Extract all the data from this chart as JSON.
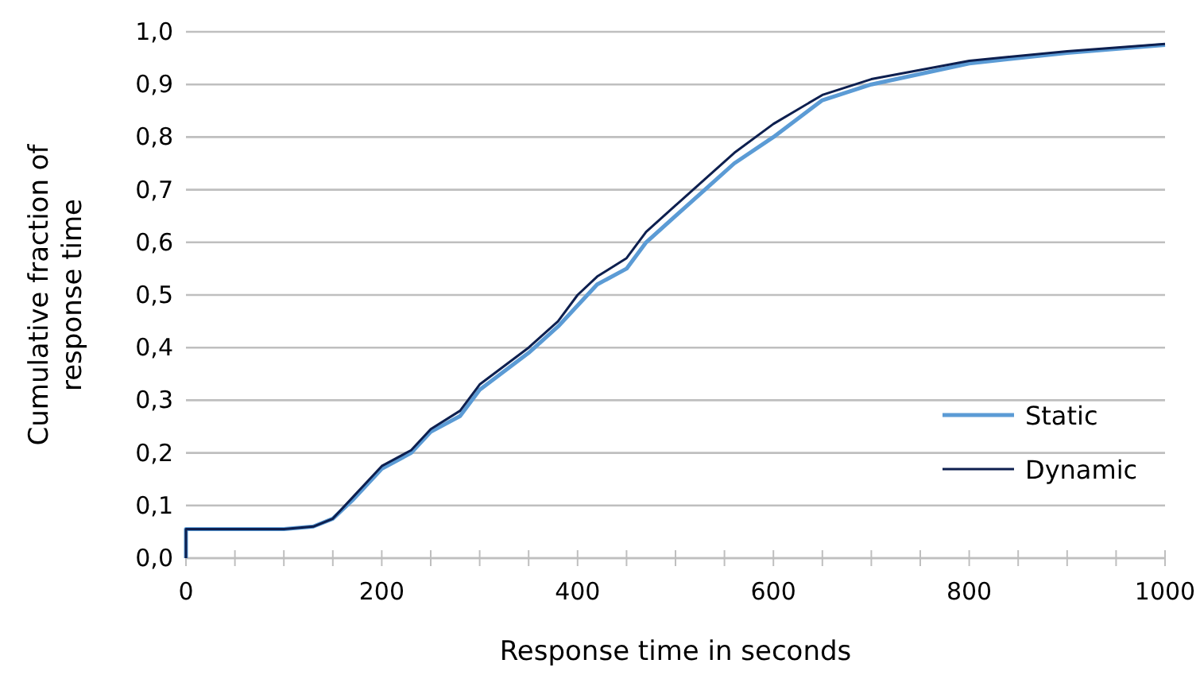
{
  "chart_data": {
    "type": "line",
    "xlabel": "Response time in seconds",
    "ylabel": "Cumulative fraction of response time",
    "xlim": [
      0,
      1000
    ],
    "ylim": [
      0,
      1
    ],
    "xticks": [
      0,
      {
        "value": 50,
        "label": null
      },
      {
        "value": 100,
        "label": null
      },
      {
        "value": 150,
        "label": null
      },
      200,
      {
        "value": 250,
        "label": null
      },
      {
        "value": 300,
        "label": null
      },
      {
        "value": 350,
        "label": null
      },
      400,
      {
        "value": 450,
        "label": null
      },
      {
        "value": 500,
        "label": null
      },
      {
        "value": 550,
        "label": null
      },
      600,
      {
        "value": 650,
        "label": null
      },
      {
        "value": 700,
        "label": null
      },
      {
        "value": 750,
        "label": null
      },
      800,
      {
        "value": 850,
        "label": null
      },
      {
        "value": 900,
        "label": null
      },
      {
        "value": 950,
        "label": null
      },
      1000
    ],
    "yticks": [
      {
        "value": 0,
        "label": "0,0"
      },
      {
        "value": 0.1,
        "label": "0,1"
      },
      {
        "value": 0.2,
        "label": "0,2"
      },
      {
        "value": 0.3,
        "label": "0,3"
      },
      {
        "value": 0.4,
        "label": "0,4"
      },
      {
        "value": 0.5,
        "label": "0,5"
      },
      {
        "value": 0.6,
        "label": "0,6"
      },
      {
        "value": 0.7,
        "label": "0,7"
      },
      {
        "value": 0.8,
        "label": "0,8"
      },
      {
        "value": 0.9,
        "label": "0,9"
      },
      {
        "value": 1,
        "label": "1,0"
      }
    ],
    "grid": "y",
    "legend": "bottom right",
    "marker": "none",
    "line_style": "solid",
    "series": [
      {
        "name": "Static",
        "color": "#5b9bd5",
        "x": [
          0,
          0,
          100,
          130,
          150,
          170,
          200,
          230,
          250,
          280,
          300,
          350,
          380,
          400,
          420,
          450,
          470,
          500,
          530,
          560,
          600,
          650,
          700,
          800,
          900,
          1000
        ],
        "values": [
          0,
          0.055,
          0.055,
          0.06,
          0.075,
          0.11,
          0.17,
          0.2,
          0.24,
          0.27,
          0.32,
          0.39,
          0.44,
          0.48,
          0.52,
          0.55,
          0.6,
          0.65,
          0.7,
          0.75,
          0.8,
          0.87,
          0.9,
          0.94,
          0.96,
          0.975
        ]
      },
      {
        "name": "Dynamic",
        "color": "#0d1f4f",
        "x": [
          0,
          0,
          100,
          130,
          150,
          170,
          200,
          230,
          250,
          280,
          300,
          350,
          380,
          400,
          420,
          450,
          470,
          500,
          530,
          560,
          600,
          650,
          700,
          800,
          900,
          1000
        ],
        "values": [
          0,
          0.055,
          0.055,
          0.06,
          0.075,
          0.115,
          0.175,
          0.205,
          0.245,
          0.28,
          0.33,
          0.4,
          0.45,
          0.5,
          0.535,
          0.57,
          0.62,
          0.67,
          0.72,
          0.77,
          0.825,
          0.88,
          0.91,
          0.945,
          0.963,
          0.977
        ]
      }
    ]
  }
}
